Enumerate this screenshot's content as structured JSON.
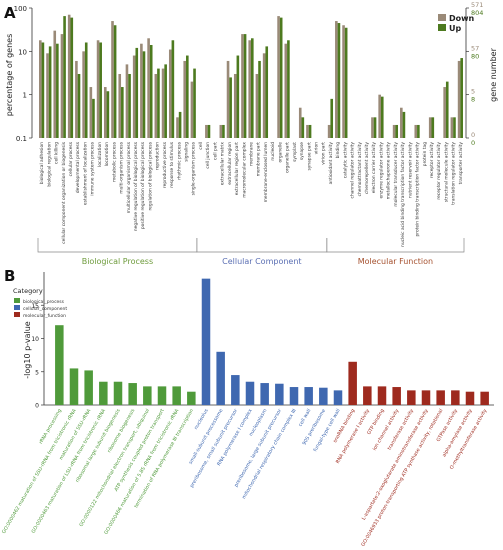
{
  "chart_data": [
    {
      "panel_label": "A",
      "type": "bar",
      "ylabel": "percentage of genes",
      "ylabel_right": "gene number",
      "y_scale": "log",
      "ylim": [
        0.1,
        100
      ],
      "yticks": [
        "0.1",
        "1",
        "10",
        "100"
      ],
      "right_ticks": [
        {
          "top": "571",
          "bottom": "804"
        },
        {
          "top": "57",
          "bottom": "80"
        },
        {
          "top": "5",
          "bottom": "8"
        },
        {
          "top": "0",
          "bottom": "0"
        }
      ],
      "legend_position": "top-right",
      "grid": false,
      "series": [
        {
          "name": "Down",
          "color": "#9a8a78"
        },
        {
          "name": "Up",
          "color": "#4d7a1f"
        }
      ],
      "categories": [
        "biological adhesion",
        "biological regulation",
        "cell killing",
        "cellular component organization or biogenesis",
        "cellular process",
        "developmental process",
        "establishment of localization",
        "immune system process",
        "localization",
        "locomotion",
        "metabolic process",
        "multi-organism process",
        "multicellular organismal process",
        "negative regulation of biological process",
        "positive regulation of biological process",
        "regulation of biological process",
        "reproduction",
        "reproductive process",
        "response to stimulus",
        "rhythmic process",
        "signaling",
        "single-organism process",
        "cell",
        "cell junction",
        "cell part",
        "extracellular matrix",
        "extracellular region",
        "extracellular region part",
        "macromolecular complex",
        "membrane",
        "membrane part",
        "membrane-enclosed lumen",
        "nucleoid",
        "organelle",
        "organelle part",
        "symplast",
        "synapse",
        "synapse part",
        "virion",
        "virion part",
        "antioxidant activity",
        "binding",
        "catalytic activity",
        "channel regulator activity",
        "chemoattractant activity",
        "chemorepellent activity",
        "electron carrier activity",
        "enzyme regulator activity",
        "metallochaperone activity",
        "molecular transducer activity",
        "nucleic acid binding transcription factor activity",
        "nutrient reservoir activity",
        "protein binding transcription factor activity",
        "protein tag",
        "receptor activity",
        "receptor regulator activity",
        "structural molecule activity",
        "translation regulator activity",
        "transporter activity"
      ],
      "values_down": [
        18,
        9,
        30,
        25,
        70,
        6,
        10,
        1.5,
        18,
        1.5,
        50,
        3,
        5,
        8,
        15,
        20,
        3,
        4,
        11,
        0.3,
        6,
        2,
        0,
        0.2,
        0,
        0.2,
        6,
        3,
        25,
        18,
        3,
        9,
        0,
        65,
        15,
        0,
        0.5,
        0.2,
        0,
        0,
        0.2,
        50,
        40,
        0,
        0,
        0,
        0.3,
        1,
        0,
        0.2,
        0.5,
        0,
        0.2,
        0,
        0.3,
        0,
        1.5,
        0.3,
        6
      ],
      "values_up": [
        16,
        13,
        15,
        65,
        60,
        3,
        16,
        0.8,
        16,
        1.2,
        40,
        1.5,
        3,
        12,
        10,
        14,
        4,
        5,
        18,
        0.4,
        8,
        4,
        0,
        0.2,
        0,
        0.2,
        2.5,
        8,
        25,
        20,
        6,
        13,
        0,
        60,
        18,
        0,
        0.3,
        0.2,
        0,
        0,
        0.8,
        45,
        35,
        0,
        0,
        0,
        0.3,
        0.9,
        0,
        0.2,
        0.4,
        0,
        0.2,
        0,
        0.3,
        0,
        2,
        0.3,
        7
      ],
      "groups": [
        {
          "label": "Biological Process",
          "start": 0,
          "end": 21,
          "color": "#6e9b3c"
        },
        {
          "label": "Cellular Component",
          "start": 22,
          "end": 39,
          "color": "#5b6fb3"
        },
        {
          "label": "Molecular Function",
          "start": 40,
          "end": 58,
          "color": "#a5502e"
        }
      ]
    },
    {
      "panel_label": "B",
      "type": "bar",
      "ylabel": "-log10 p-value",
      "ylim": [
        0,
        20
      ],
      "yticks": [
        "0",
        "5",
        "10",
        "15"
      ],
      "legend_title": "Category",
      "legend_position": "top-left",
      "grid": false,
      "series": [
        {
          "name": "biological_process",
          "color": "#4f9a3a"
        },
        {
          "name": "cellular_component",
          "color": "#3f68b0"
        },
        {
          "name": "molecular_function",
          "color": "#9e2a1e"
        }
      ],
      "categories": [
        "rRNA processing",
        "GO:0000462 maturation of SSU-rRNA from tricistronic rRNA",
        "maturation of SSU-rRNA",
        "GO:0000463 maturation of LSU-rRNA from tricistronic rRNA",
        "ribosomal large subunit biogenesis",
        "ribosome biogenesis",
        "GO:0000122 mitochondrial electron transport, ubiquinol",
        "ATP synthesis coupled proton transport",
        "GO:0000466 maturation of 5.8S rRNA from tricistronic rRNA",
        "termination of RNA polymerase III transcription",
        "nucleolus",
        "small-subunit processome",
        "preribosome, small subunit precursor",
        "RNA polymerase I complex",
        "nucleoplasm",
        "preribosome, large subunit precursor",
        "mitochondrial respiratory chain complex III",
        "cell wall",
        "90S preribosome",
        "fungal-type cell wall",
        "snoRNA binding",
        "RNA polymerase I activity",
        "GTP binding",
        "ion channel activity",
        "transferase activity",
        "L-aspartate:2-oxoglutarate aminotransferase activity",
        "GO:0046933 proton-transporting ATP synthase activity, rotational",
        "GTPase activity",
        "alpha-amylase activity",
        "O-methyltransferase activity"
      ],
      "values": [
        12,
        5.5,
        5.2,
        3.5,
        3.5,
        3.3,
        2.8,
        2.8,
        2.8,
        2.0,
        19,
        8,
        4.5,
        3.5,
        3.3,
        3.2,
        2.7,
        2.7,
        2.6,
        2.2,
        6.5,
        2.8,
        2.8,
        2.7,
        2.2,
        2.2,
        2.2,
        2.2,
        2.0,
        2.0
      ],
      "category_type": [
        "biological_process",
        "biological_process",
        "biological_process",
        "biological_process",
        "biological_process",
        "biological_process",
        "biological_process",
        "biological_process",
        "biological_process",
        "biological_process",
        "cellular_component",
        "cellular_component",
        "cellular_component",
        "cellular_component",
        "cellular_component",
        "cellular_component",
        "cellular_component",
        "cellular_component",
        "cellular_component",
        "cellular_component",
        "molecular_function",
        "molecular_function",
        "molecular_function",
        "molecular_function",
        "molecular_function",
        "molecular_function",
        "molecular_function",
        "molecular_function",
        "molecular_function",
        "molecular_function"
      ]
    }
  ]
}
